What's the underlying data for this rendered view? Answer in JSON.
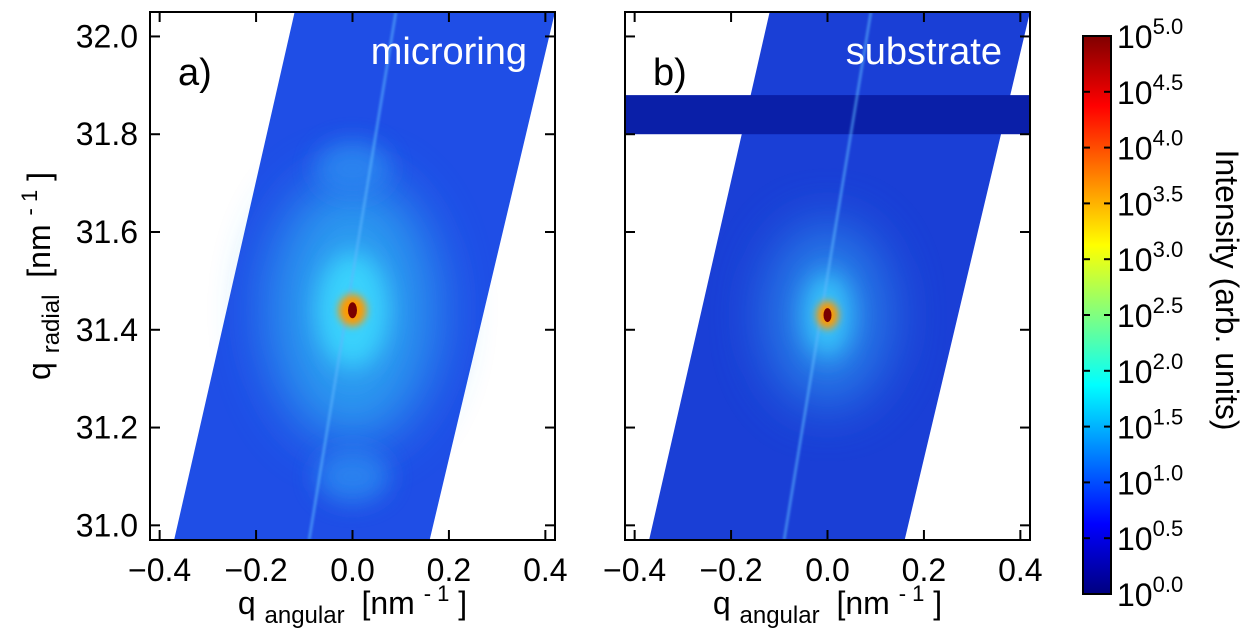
{
  "chart_data": [
    {
      "type": "heatmap",
      "panel_label": "a)",
      "title": "microring",
      "xlabel": {
        "main": "q",
        "sub": "angular",
        "unit": "[nm",
        "exp": "- 1",
        "close": "]"
      },
      "ylabel": {
        "main": "q",
        "sub": "radial",
        "unit": "[nm",
        "exp": "- 1",
        "close": "]"
      },
      "xlim": [
        -0.42,
        0.42
      ],
      "ylim": [
        30.97,
        32.05
      ],
      "xticks": [
        -0.4,
        -0.2,
        0.0,
        0.2,
        0.4
      ],
      "xtick_labels": [
        "−0.4",
        "−0.2",
        "0.0",
        "0.2",
        "0.4"
      ],
      "yticks": [
        31.0,
        31.2,
        31.4,
        31.6,
        31.8,
        32.0
      ],
      "ytick_labels": [
        "31.0",
        "31.2",
        "31.4",
        "31.6",
        "31.8",
        "32.0"
      ],
      "detector_stripe": {
        "bottom_edges": [
          -0.37,
          0.16
        ],
        "top_edges": [
          -0.12,
          0.42
        ]
      },
      "peak": {
        "x": 0.0,
        "y": 31.44,
        "log_intensity": 5.0
      },
      "satellites": [
        {
          "x": 0.0,
          "y": 31.73,
          "log_intensity": 1.3
        },
        {
          "x": 0.0,
          "y": 31.1,
          "log_intensity": 1.3
        }
      ],
      "background_log_intensity": 0.8
    },
    {
      "type": "heatmap",
      "panel_label": "b)",
      "title": "substrate",
      "xlabel": {
        "main": "q",
        "sub": "angular",
        "unit": "[nm",
        "exp": "- 1",
        "close": "]"
      },
      "xlim": [
        -0.42,
        0.42
      ],
      "ylim": [
        30.97,
        32.05
      ],
      "xticks": [
        -0.4,
        -0.2,
        0.0,
        0.2,
        0.4
      ],
      "xtick_labels": [
        "−0.4",
        "−0.2",
        "0.0",
        "0.2",
        "0.4"
      ],
      "yticks": [
        31.0,
        31.2,
        31.4,
        31.6,
        31.8,
        32.0
      ],
      "detector_stripe": {
        "bottom_edges": [
          -0.37,
          0.16
        ],
        "top_edges": [
          -0.12,
          0.42
        ]
      },
      "dark_band_y": [
        31.8,
        31.88
      ],
      "peak": {
        "x": 0.0,
        "y": 31.43,
        "log_intensity": 5.0
      },
      "background_log_intensity": 0.6
    }
  ],
  "colorbar": {
    "label": "Intensity (arb. units)",
    "scale": "log",
    "range": [
      0.0,
      5.0
    ],
    "tick_base": "10",
    "tick_exponents": [
      "0.0",
      "0.5",
      "1.0",
      "1.5",
      "2.0",
      "2.5",
      "3.0",
      "3.5",
      "4.0",
      "4.5",
      "5.0"
    ],
    "colors": [
      "#00007f",
      "#0000ff",
      "#0080ff",
      "#00ffff",
      "#80ff80",
      "#ffff00",
      "#ff8000",
      "#ff0000",
      "#800000"
    ]
  }
}
